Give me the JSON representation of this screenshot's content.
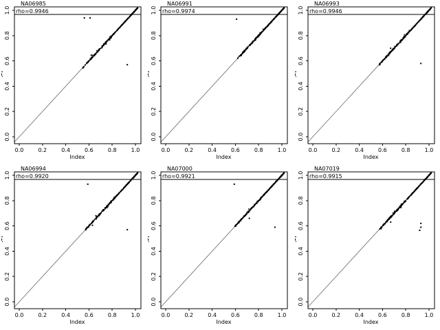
{
  "figure": {
    "background": "#ffffff",
    "grid": {
      "rows": 2,
      "cols": 3
    },
    "axis": {
      "xlabel": "Index",
      "xticks": [
        "0.0",
        "0.2",
        "0.4",
        "0.6",
        "0.8",
        "1.0"
      ],
      "yticks": [
        "0.0",
        "0.2",
        "0.4",
        "0.6",
        "0.8",
        "1.0"
      ],
      "xlim": [
        -0.04,
        1.04
      ],
      "ylim": [
        -0.04,
        1.04
      ]
    },
    "colors": {
      "points": "#000000",
      "identity_line": "#828282",
      "box": "#000000",
      "text": "#000000",
      "threshold_line": "#000000"
    }
  },
  "chart_data": [
    {
      "type": "scatter",
      "title": "NA06985",
      "annotation": "rho=0.9946",
      "rho": 0.9946,
      "xlabel": "Index",
      "xlim": [
        0,
        1
      ],
      "ylim": [
        0,
        1
      ],
      "identity_line": true,
      "threshold_line_y": 0.967,
      "band": {
        "from": 0.55,
        "to": 1.02
      },
      "outliers": [
        [
          0.56,
          0.94
        ],
        [
          0.61,
          0.94
        ],
        [
          0.93,
          0.57
        ],
        [
          0.62,
          0.645
        ]
      ]
    },
    {
      "type": "scatter",
      "title": "NA06991",
      "annotation": "rho=0.9974",
      "rho": 0.9974,
      "xlabel": "Index",
      "xlim": [
        0,
        1
      ],
      "ylim": [
        0,
        1
      ],
      "identity_line": true,
      "threshold_line_y": 0.967,
      "band": {
        "from": 0.62,
        "to": 1.02
      },
      "outliers": [
        [
          0.61,
          0.93
        ]
      ]
    },
    {
      "type": "scatter",
      "title": "NA06993",
      "annotation": "rho=0.9946",
      "rho": 0.9946,
      "xlabel": "Index",
      "xlim": [
        0,
        1
      ],
      "ylim": [
        0,
        1
      ],
      "identity_line": true,
      "threshold_line_y": 0.967,
      "band": {
        "from": 0.57,
        "to": 1.02
      },
      "outliers": [
        [
          0.93,
          0.58
        ],
        [
          0.67,
          0.7
        ]
      ]
    },
    {
      "type": "scatter",
      "title": "NA06994",
      "annotation": "rho=0.9920",
      "rho": 0.992,
      "xlabel": "Index",
      "xlim": [
        0,
        1
      ],
      "ylim": [
        0,
        1
      ],
      "identity_line": true,
      "threshold_line_y": 0.967,
      "band": {
        "from": 0.57,
        "to": 1.02
      },
      "outliers": [
        [
          0.59,
          0.93
        ],
        [
          0.93,
          0.57
        ],
        [
          0.63,
          0.605
        ],
        [
          0.66,
          0.68
        ]
      ]
    },
    {
      "type": "scatter",
      "title": "NA07000",
      "annotation": "rho=0.9921",
      "rho": 0.9921,
      "xlabel": "Index",
      "xlim": [
        0,
        1
      ],
      "ylim": [
        0,
        1
      ],
      "identity_line": true,
      "threshold_line_y": 0.967,
      "band": {
        "from": 0.6,
        "to": 1.02
      },
      "outliers": [
        [
          0.59,
          0.93
        ],
        [
          0.94,
          0.59
        ],
        [
          0.72,
          0.66
        ]
      ]
    },
    {
      "type": "scatter",
      "title": "NA07019",
      "annotation": "rho=0.9915",
      "rho": 0.9915,
      "xlabel": "Index",
      "xlim": [
        0,
        1
      ],
      "ylim": [
        0,
        1
      ],
      "identity_line": true,
      "threshold_line_y": 0.967,
      "band": {
        "from": 0.58,
        "to": 1.02
      },
      "outliers": [
        [
          0.93,
          0.62
        ],
        [
          0.93,
          0.59
        ],
        [
          0.92,
          0.565
        ],
        [
          0.67,
          0.63
        ]
      ]
    }
  ]
}
